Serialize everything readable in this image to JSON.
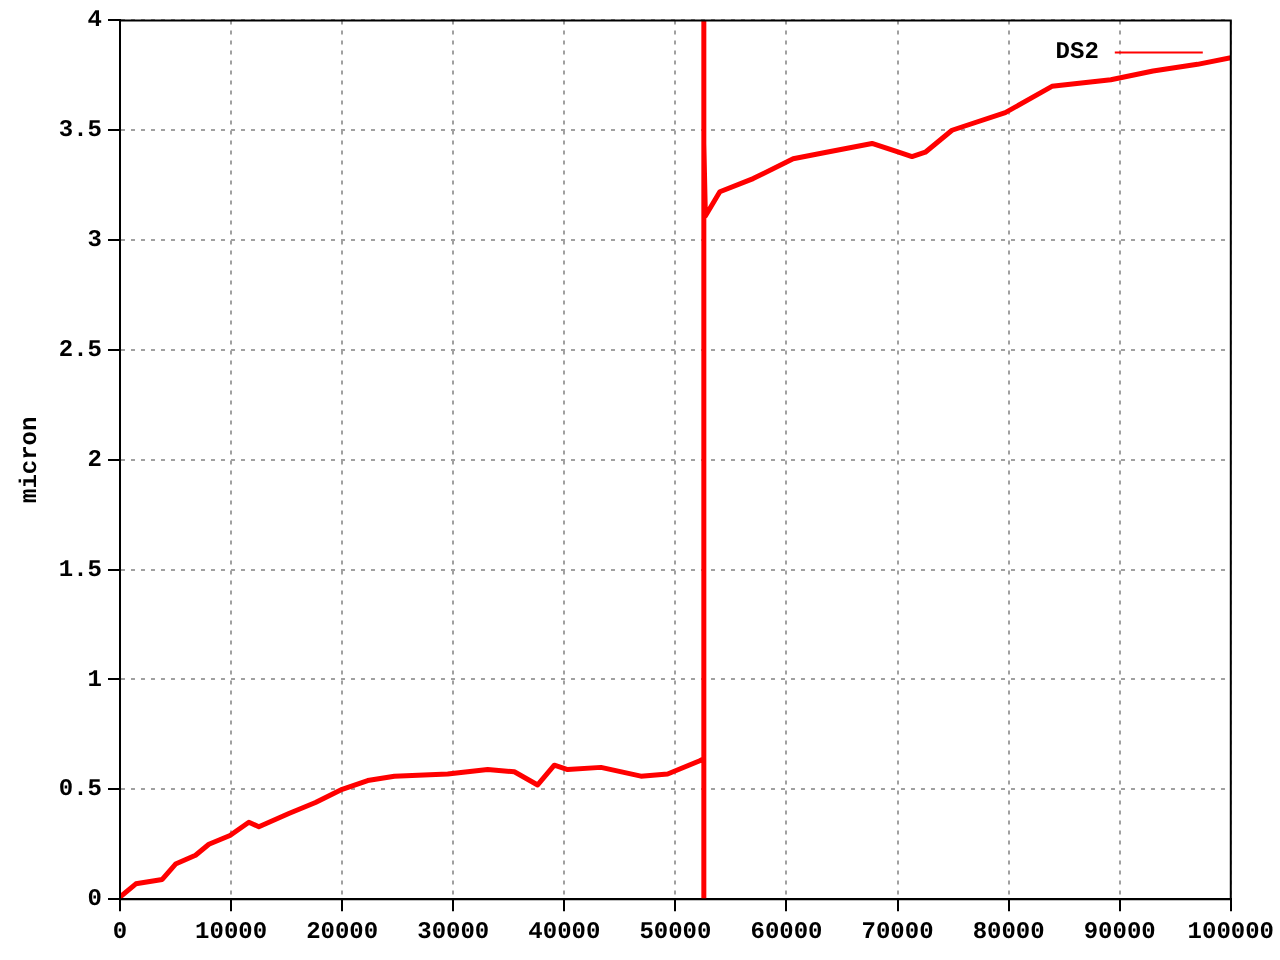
{
  "chart_data": {
    "type": "line",
    "ylabel": "micron",
    "xlim": [
      0,
      100000
    ],
    "xticks": [
      0,
      10000,
      20000,
      30000,
      40000,
      50000,
      60000,
      70000,
      80000,
      90000,
      100000
    ],
    "ylim": [
      0,
      4
    ],
    "yticks": [
      0,
      0.5,
      1,
      1.5,
      2,
      2.5,
      3,
      3.5,
      4
    ],
    "grid": true,
    "legend": "top right",
    "marker": "none",
    "series": [
      {
        "name": "DS2",
        "color": "#ff0000",
        "x": [
          0,
          1430,
          3800,
          5000,
          6800,
          8000,
          9900,
          11600,
          12500,
          15200,
          17600,
          20000,
          22300,
          24700,
          29500,
          33100,
          35500,
          37600,
          39100,
          40300,
          43300,
          46900,
          49300,
          52200,
          52560,
          52560,
          52560,
          52560,
          52700,
          54000,
          57000,
          60600,
          63600,
          67700,
          70100,
          71300,
          72500,
          74900,
          79700,
          83900,
          89200,
          93000,
          97000,
          100000
        ],
        "values": [
          0.01,
          0.07,
          0.09,
          0.16,
          0.2,
          0.25,
          0.29,
          0.35,
          0.33,
          0.39,
          0.44,
          0.5,
          0.54,
          0.56,
          0.57,
          0.59,
          0.58,
          0.52,
          0.61,
          0.59,
          0.6,
          0.56,
          0.57,
          0.63,
          0.64,
          0,
          4,
          3.44,
          3.11,
          3.22,
          3.28,
          3.37,
          3.4,
          3.44,
          3.4,
          3.38,
          3.4,
          3.5,
          3.58,
          3.7,
          3.73,
          3.77,
          3.8,
          3.83
        ]
      }
    ]
  }
}
